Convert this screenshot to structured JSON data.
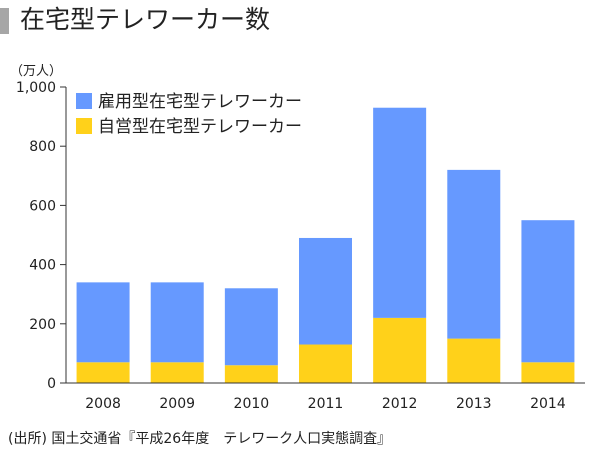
{
  "title": "在宅型テレワーカー数",
  "unit_label": "（万人）",
  "source": "(出所) 国土交通省『平成26年度　テレワーク人口実態調査』",
  "colors": {
    "employed": "#6699ff",
    "self_employed": "#ffd11a",
    "title_bar": "#a6a6a6",
    "axis": "#333333"
  },
  "chart_data": {
    "type": "bar",
    "stacked": true,
    "categories": [
      "2008",
      "2009",
      "2010",
      "2011",
      "2012",
      "2013",
      "2014"
    ],
    "series": [
      {
        "name": "自営型在宅型テレワーカー",
        "values": [
          70,
          70,
          60,
          130,
          220,
          150,
          70
        ]
      },
      {
        "name": "雇用型在宅型テレワーカー",
        "values": [
          270,
          270,
          260,
          360,
          710,
          570,
          480
        ]
      }
    ],
    "yticks": [
      "0",
      "200",
      "400",
      "600",
      "800",
      "1,000"
    ],
    "ylim": [
      0,
      1000
    ],
    "legend": {
      "position": "top-left",
      "items": [
        "雇用型在宅型テレワーカー",
        "自営型在宅型テレワーカー"
      ]
    },
    "grid": false
  }
}
